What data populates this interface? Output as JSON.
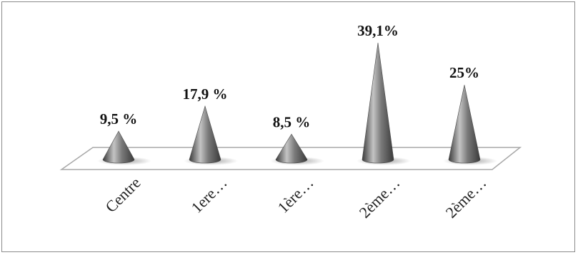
{
  "chart_data": {
    "type": "bar",
    "style": "3d-cone",
    "categories": [
      "Centre",
      "1ere…",
      "1ère…",
      "2ème…",
      "2ème…"
    ],
    "values": [
      9.5,
      17.9,
      8.5,
      39.1,
      25
    ],
    "data_labels": [
      "9,5 %",
      "17,9 %",
      "8,5 %",
      "39,1%",
      "25%"
    ],
    "title": "",
    "xlabel": "",
    "ylabel": "",
    "ylim": [
      0,
      40
    ],
    "grid": false,
    "legend": "none",
    "colors": {
      "cone": "#6e6e6e",
      "cone_highlight": "#c4c4c4",
      "cone_shadow": "#3a3a3a",
      "floor": "#ffffff",
      "floor_edge": "#a8a8a8"
    }
  }
}
